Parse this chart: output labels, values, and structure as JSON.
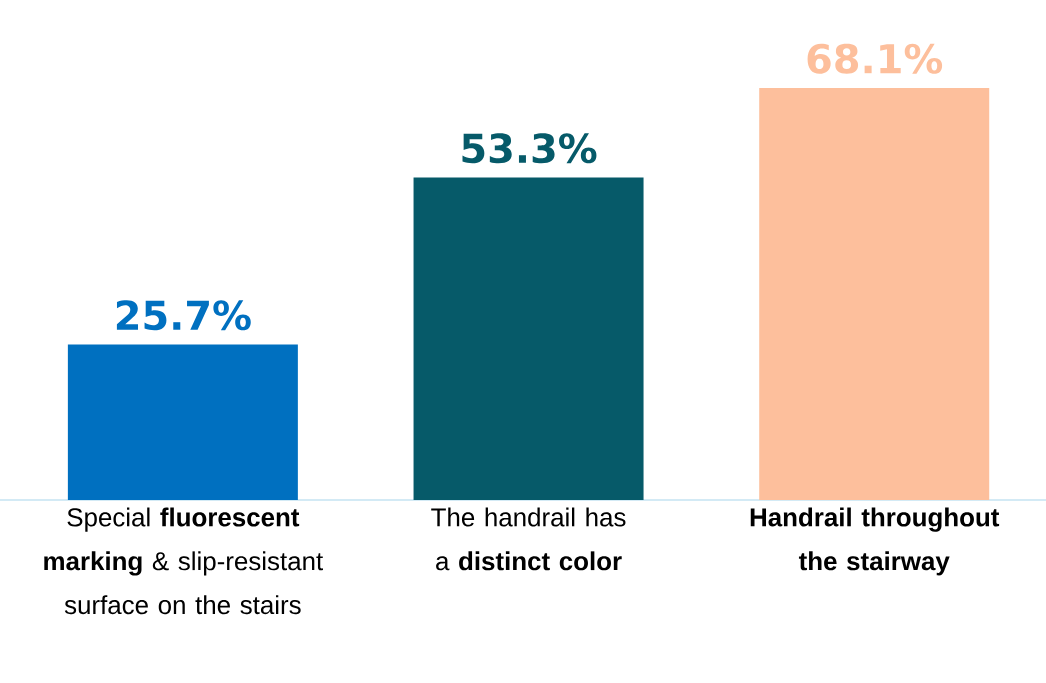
{
  "chart_data": {
    "type": "bar",
    "categories": [
      "Special **fluorescent marking** & slip-resistant surface on the stairs",
      "The handrail has a **distinct color**",
      "**Handrail throughout the stairway**"
    ],
    "values": [
      25.7,
      53.3,
      68.1
    ],
    "colors": [
      "#0070c0",
      "#065a69",
      "#fdbf9c"
    ],
    "value_labels": [
      "25.7%",
      "53.3%",
      "68.1%"
    ],
    "tick_labels": "x"
  }
}
